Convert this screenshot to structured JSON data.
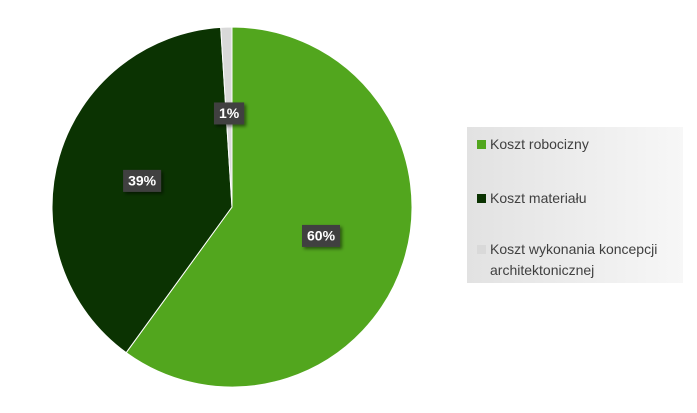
{
  "chart_data": {
    "type": "pie",
    "categories": [
      "Koszt robocizny",
      "Koszt materiału",
      "Koszt wykonania koncepcji architektonicznej"
    ],
    "values": [
      60,
      39,
      1
    ],
    "value_labels": [
      "60%",
      "39%",
      "1%"
    ],
    "colors": [
      "#52a61e",
      "#0b3302",
      "#d9d9d9"
    ],
    "legend": "right"
  }
}
